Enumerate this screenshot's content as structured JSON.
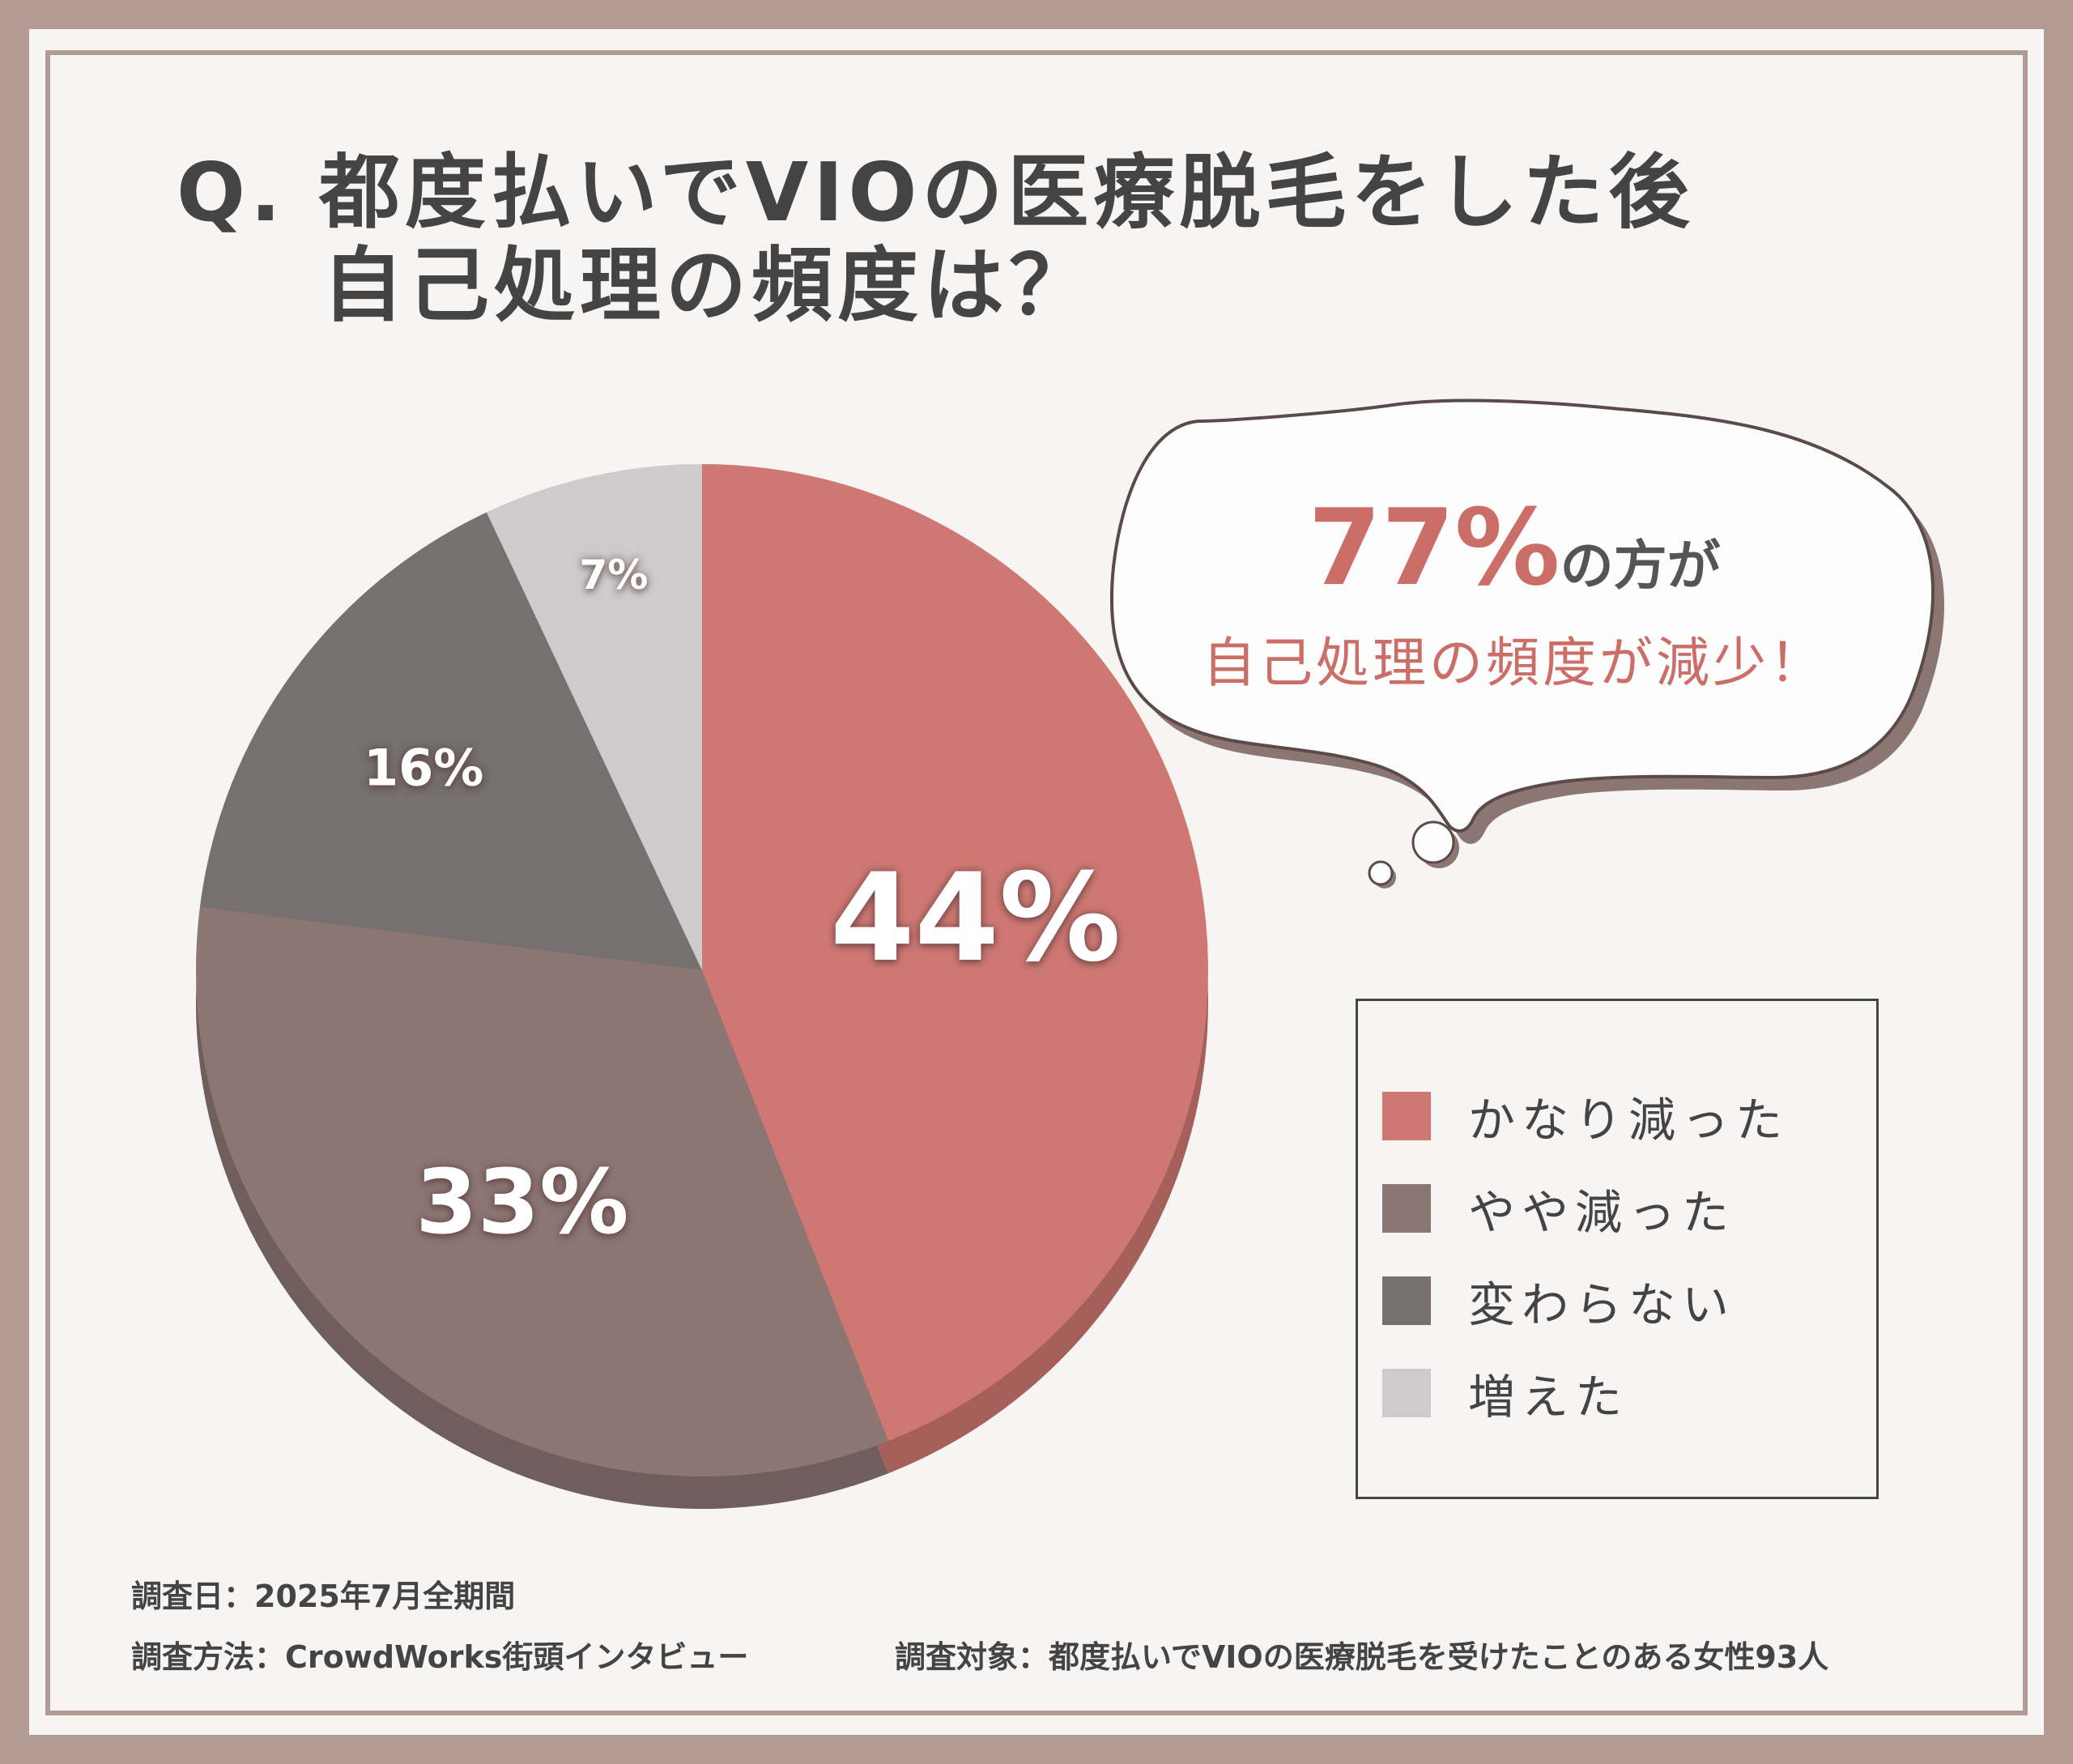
{
  "title": {
    "line1": "Q. 都度払いでVIOの医療脱毛をした後",
    "line2": "自己処理の頻度は？"
  },
  "bubble": {
    "percent": "77%",
    "suffix": "の方が",
    "line2": "自己処理の頻度が減少！"
  },
  "chart_data": {
    "type": "pie",
    "title": "Q. 都度払いでVIOの医療脱毛をした後 自己処理の頻度は？",
    "slices": [
      {
        "name": "かなり減った",
        "value": 44,
        "label": "44%",
        "color": "#cf7873"
      },
      {
        "name": "やや減った",
        "value": 33,
        "label": "33%",
        "color": "#8c7674"
      },
      {
        "name": "変わらない",
        "value": 16,
        "label": "16%",
        "color": "#767070"
      },
      {
        "name": "増えた",
        "value": 7,
        "label": "7%",
        "color": "#cdcbcb"
      }
    ],
    "legend": "right"
  },
  "notes": {
    "date": "調査日：2025年7月全期間",
    "method": "調査方法：CrowdWorks街頭インタビュー",
    "target": "調査対象：都度払いでVIOの医療脱毛を受けたことのある女性93人"
  }
}
